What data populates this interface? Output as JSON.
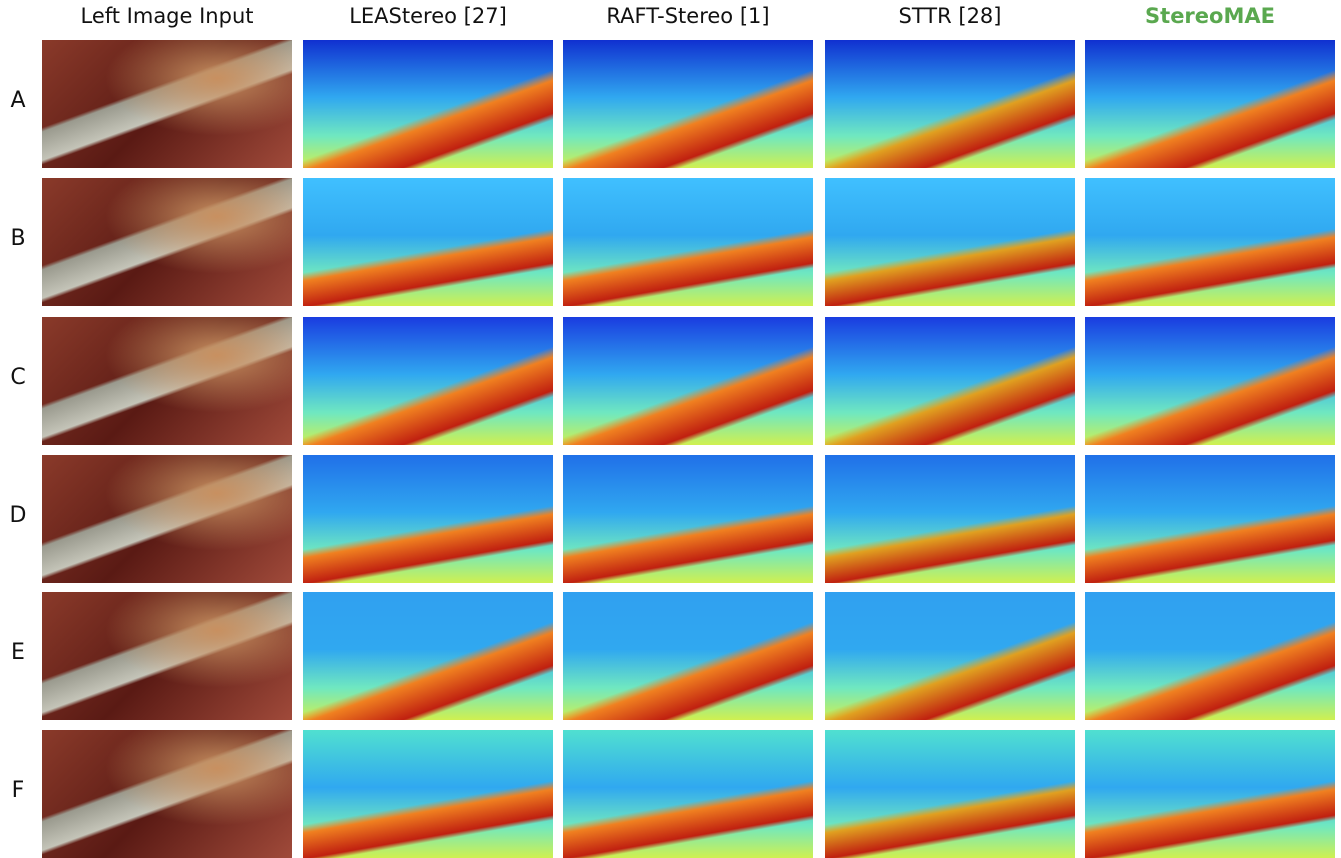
{
  "columns": [
    "Left Image Input",
    "LEAStereo [27]",
    "RAFT-Stereo [1]",
    "STTR [28]",
    "StereoMAE"
  ],
  "rows": [
    "A",
    "B",
    "C",
    "D",
    "E",
    "F"
  ]
}
